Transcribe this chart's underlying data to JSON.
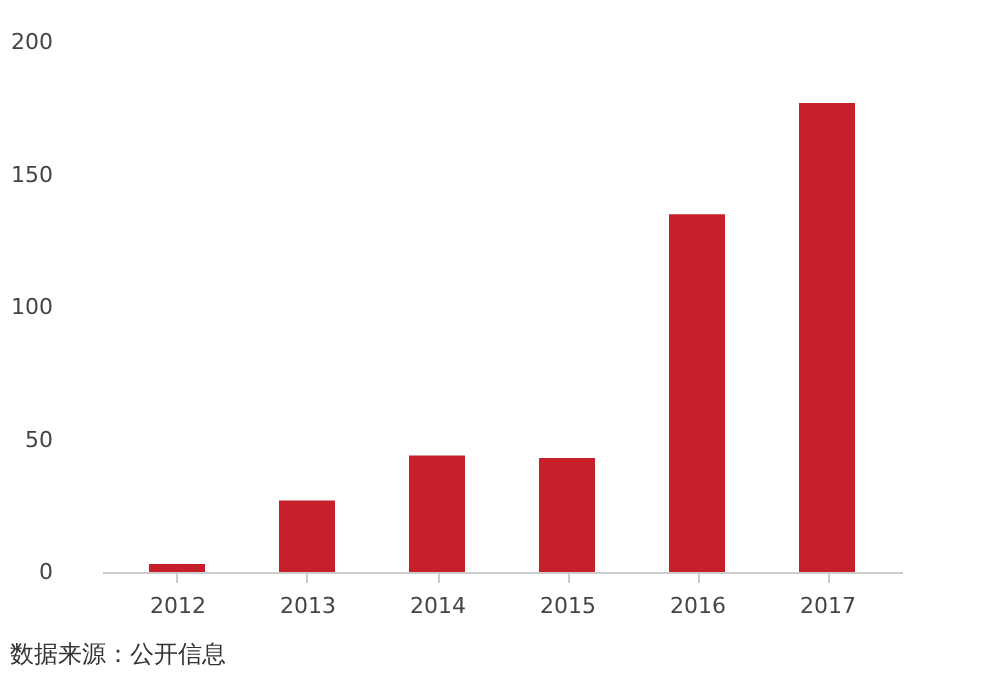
{
  "chart_data": {
    "type": "bar",
    "categories": [
      "2012",
      "2013",
      "2014",
      "2015",
      "2016",
      "2017"
    ],
    "values": [
      3,
      27,
      44,
      43,
      135,
      177
    ],
    "color": "#c8202a",
    "ylim": [
      0,
      200
    ],
    "yticks": [
      0,
      50,
      100,
      150,
      200
    ],
    "grid": false,
    "annotations": [
      "数据来源：公开信息"
    ]
  }
}
